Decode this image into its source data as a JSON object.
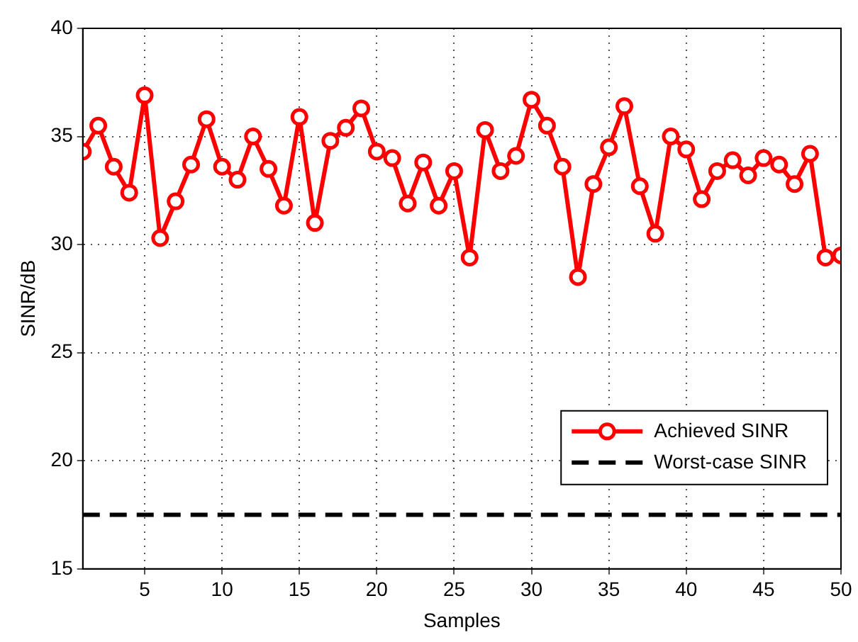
{
  "chart_data": {
    "type": "line",
    "xlabel": "Samples",
    "ylabel": "SINR/dB",
    "x": [
      1,
      2,
      3,
      4,
      5,
      6,
      7,
      8,
      9,
      10,
      11,
      12,
      13,
      14,
      15,
      16,
      17,
      18,
      19,
      20,
      21,
      22,
      23,
      24,
      25,
      26,
      27,
      28,
      29,
      30,
      31,
      32,
      33,
      34,
      35,
      36,
      37,
      38,
      39,
      40,
      41,
      42,
      43,
      44,
      45,
      46,
      47,
      48,
      49,
      50
    ],
    "series": [
      {
        "name": "Achieved SINR",
        "color": "#ff0000",
        "values": [
          34.3,
          35.5,
          33.6,
          32.4,
          36.9,
          30.3,
          32.0,
          33.7,
          35.8,
          33.6,
          33.0,
          35.0,
          33.5,
          31.8,
          35.9,
          31.0,
          34.8,
          35.4,
          36.3,
          34.3,
          34.0,
          31.9,
          33.8,
          31.8,
          33.4,
          29.4,
          35.3,
          33.4,
          34.1,
          36.7,
          35.5,
          33.6,
          28.5,
          32.8,
          34.5,
          36.4,
          32.7,
          30.5,
          35.0,
          34.4,
          32.1,
          33.4,
          33.9,
          33.2,
          34.0,
          33.7,
          32.8,
          34.2,
          29.4,
          29.5
        ]
      }
    ],
    "ref_lines": [
      {
        "axis": "y",
        "value": 17.5,
        "label": "Worst-case SINR",
        "color": "#000000",
        "line_style": "dashed"
      }
    ],
    "xlim": [
      1,
      50
    ],
    "xticks": [
      5,
      10,
      15,
      20,
      25,
      30,
      35,
      40,
      45,
      50
    ],
    "ylim": [
      15,
      40
    ],
    "yticks": [
      15,
      20,
      25,
      30,
      35,
      40
    ],
    "grid": true,
    "legend": "bottom right",
    "marker": "circle",
    "line_style": "solid"
  }
}
